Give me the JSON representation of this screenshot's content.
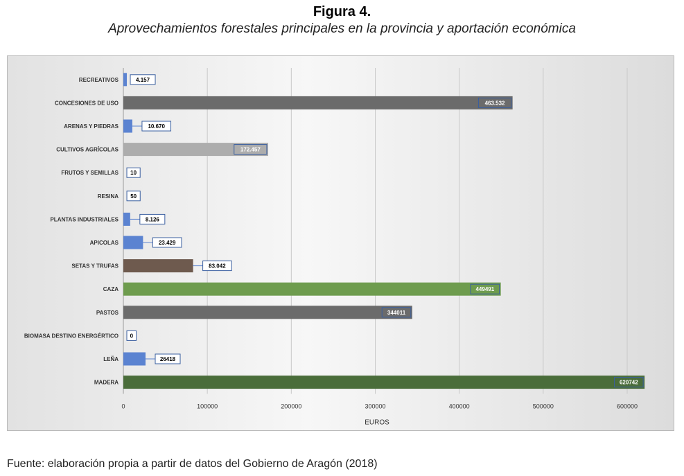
{
  "figure": {
    "title": "Figura 4.",
    "subtitle": "Aprovechamientos forestales principales en la provincia y aportación económica",
    "source": "Fuente: elaboración propia a partir de datos del Gobierno de Aragón (2018)"
  },
  "chart_data": {
    "type": "bar",
    "orientation": "horizontal",
    "xlabel": "EUROS",
    "ylabel": "",
    "xlim": [
      0,
      600000
    ],
    "xticks": [
      0,
      100000,
      200000,
      300000,
      400000,
      500000,
      600000
    ],
    "xtick_labels": [
      "0",
      "100000",
      "200000",
      "300000",
      "400000",
      "500000",
      "600000"
    ],
    "grid": "vertical",
    "categories": [
      "RECREATIVOS",
      "CONCESIONES DE USO",
      "ARENAS Y PIEDRAS",
      "CULTIVOS AGRÍCOLAS",
      "FRUTOS Y SEMILLAS",
      "RESINA",
      "PLANTAS INDUSTRIALES",
      "APICOLAS",
      "SETAS Y TRUFAS",
      "CAZA",
      "PASTOS",
      "BIOMASA DESTINO ENERGÉRTICO",
      "LEÑA",
      "MADERA"
    ],
    "values": [
      4157,
      463532,
      10670,
      172457,
      10,
      50,
      8126,
      23429,
      83042,
      449491,
      344011,
      0,
      26418,
      620742
    ],
    "data_labels": [
      "4.157",
      "463.532",
      "10.670",
      "172.457",
      "10",
      "50",
      "8.126",
      "23.429",
      "83.042",
      "449491",
      "344011",
      "0",
      "26418",
      "620742"
    ],
    "colors": [
      "#5b83d1",
      "#6b6b6b",
      "#5b83d1",
      "#adadad",
      "#5b83d1",
      "#5b83d1",
      "#5b83d1",
      "#5b83d1",
      "#6e5a4e",
      "#6e9c4e",
      "#6b6b6b",
      "#5b83d1",
      "#5b83d1",
      "#4a6d3a"
    ],
    "label_inside": [
      false,
      true,
      false,
      true,
      false,
      false,
      false,
      false,
      false,
      true,
      true,
      false,
      false,
      true
    ]
  }
}
